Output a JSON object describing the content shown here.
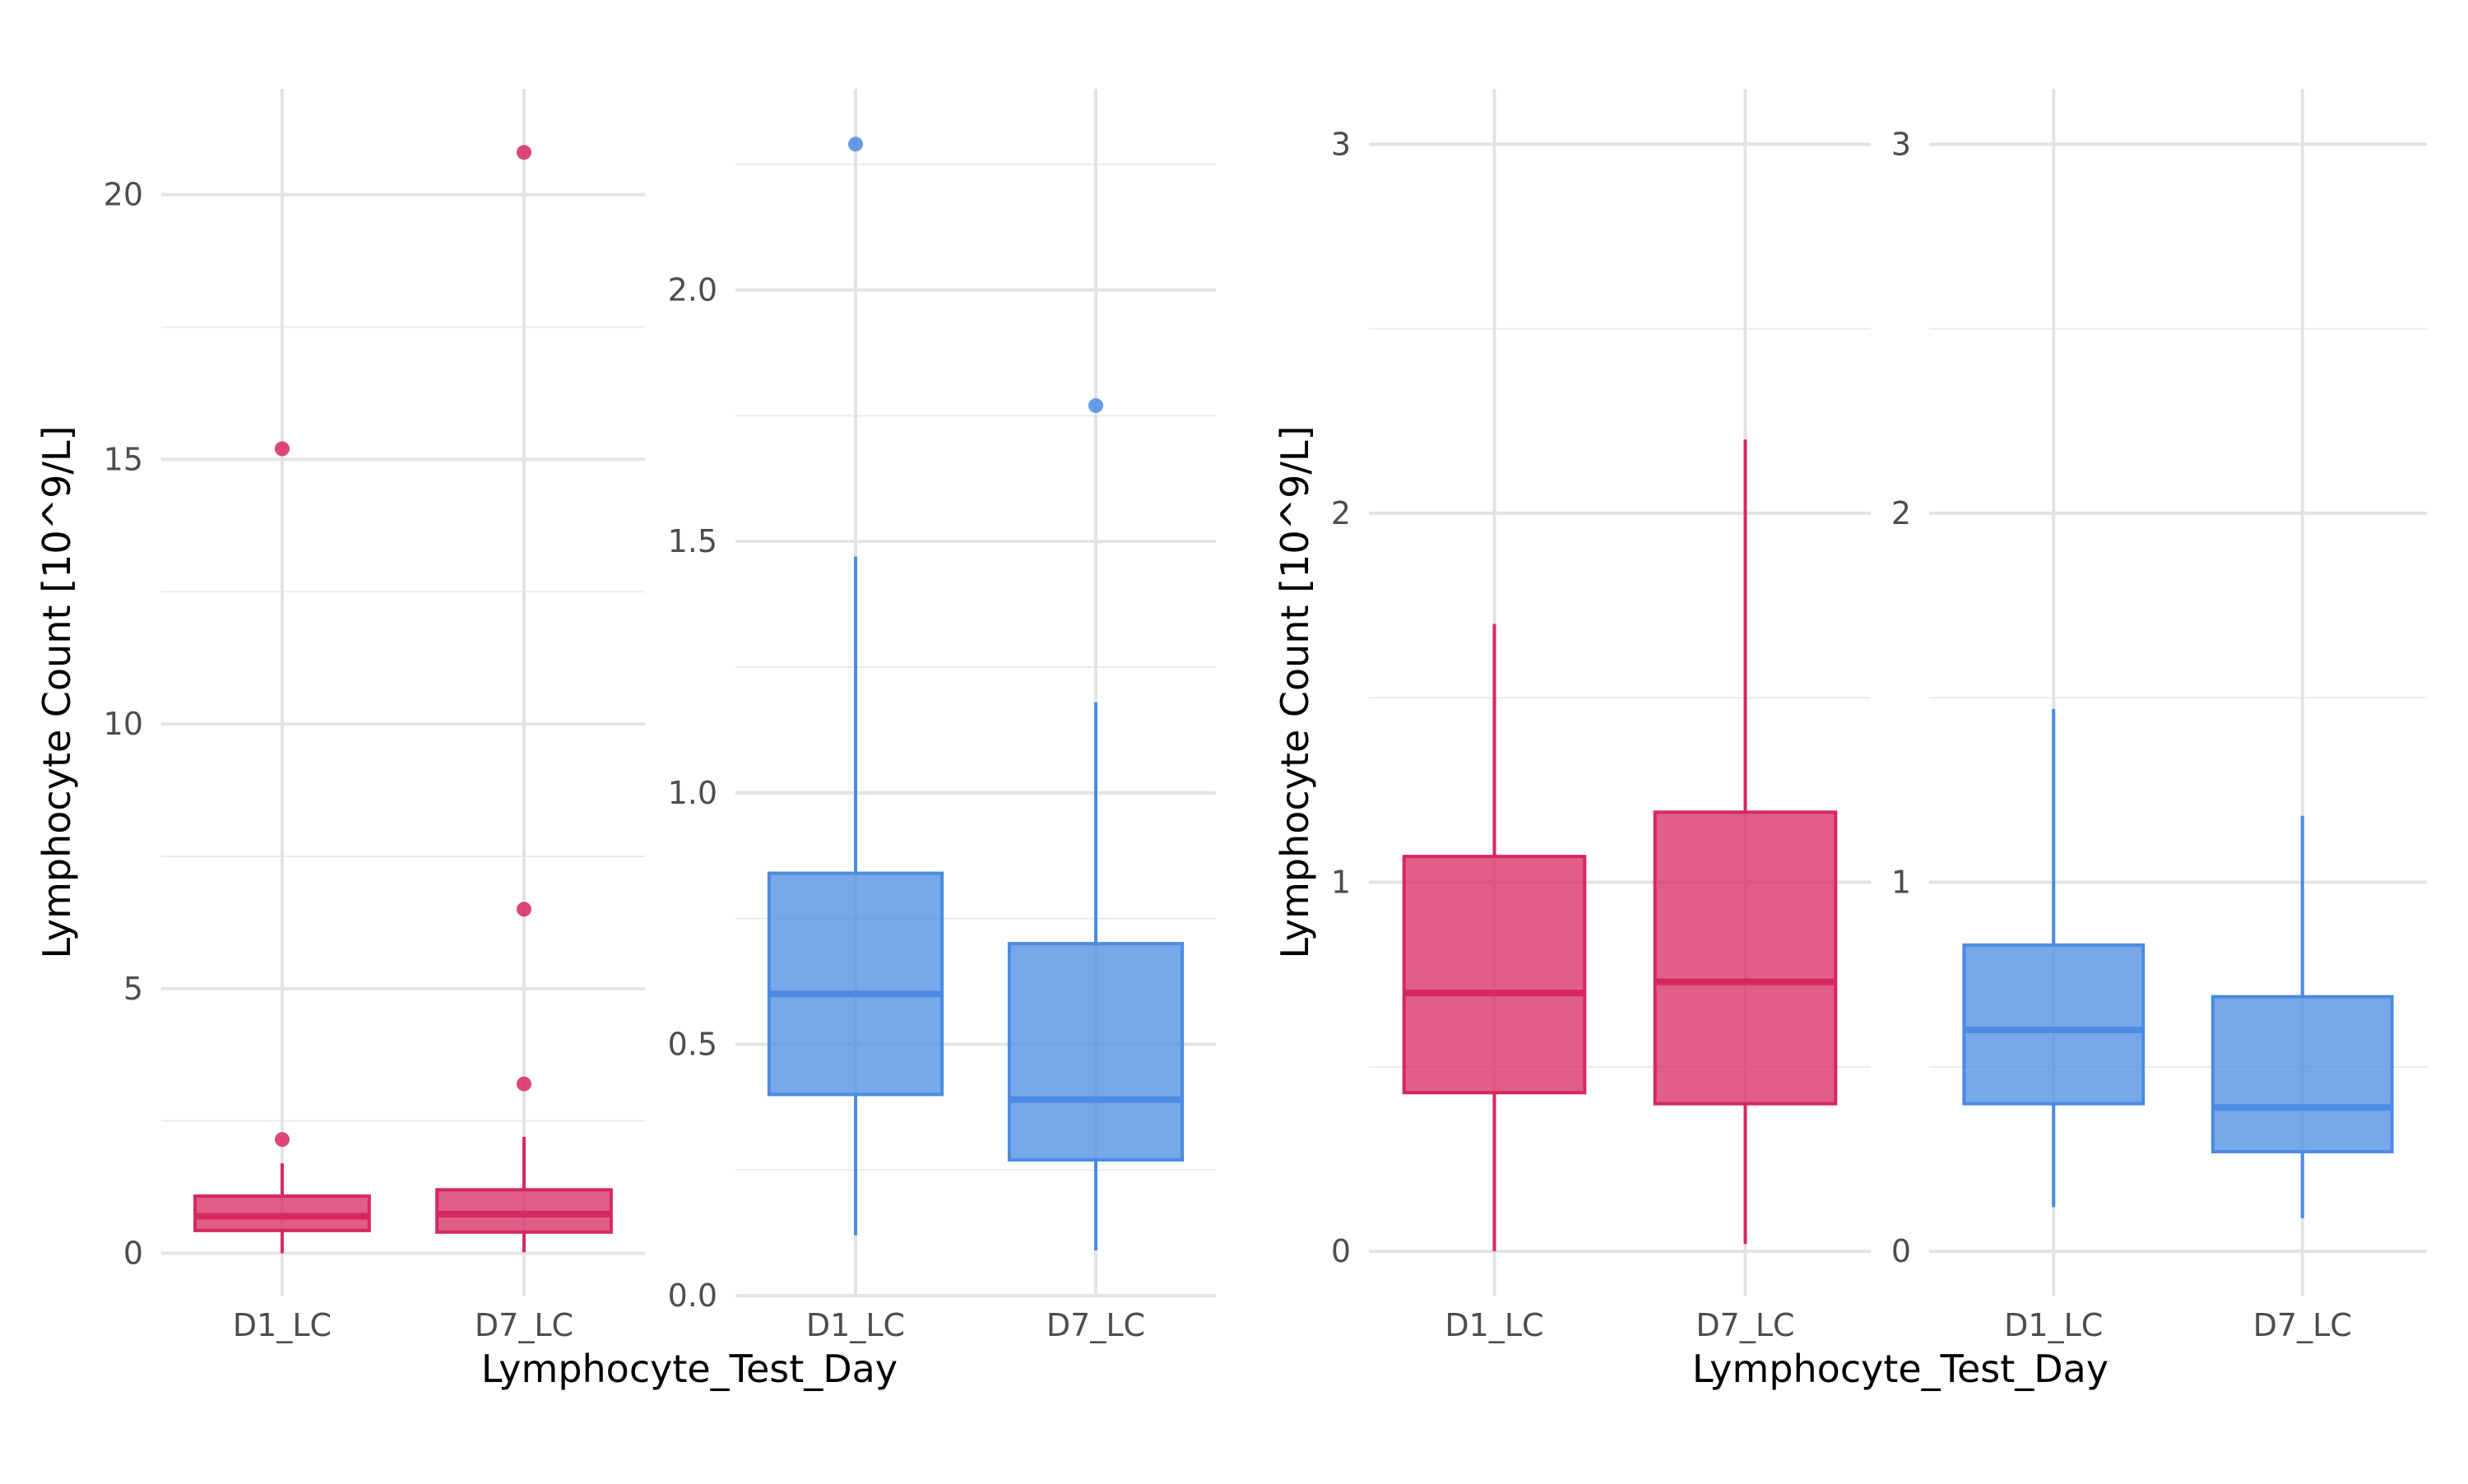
{
  "chart_data": [
    {
      "type": "box",
      "xlabel": "",
      "ylabel": "Lymphocyte Count [10^9/L]",
      "categories": [
        "D1_LC",
        "D7_LC"
      ],
      "ylim": [
        -0.8,
        22.0
      ],
      "yticks": [
        0,
        5,
        10,
        15,
        20
      ],
      "ytick_labels": [
        "0",
        "5",
        "10",
        "15",
        "20"
      ],
      "color": "#d6285f",
      "boxes": [
        {
          "category": "D1_LC",
          "whisker_low": 0.0,
          "q1": 0.43,
          "median": 0.7,
          "q3": 1.08,
          "whisker_high": 1.7,
          "outliers": [
            2.15,
            15.2
          ]
        },
        {
          "category": "D7_LC",
          "whisker_low": 0.02,
          "q1": 0.4,
          "median": 0.74,
          "q3": 1.2,
          "whisker_high": 2.2,
          "outliers": [
            3.2,
            6.5,
            20.8
          ]
        }
      ]
    },
    {
      "type": "box",
      "xlabel": "Lymphocyte_Test_Day",
      "ylabel": "",
      "categories": [
        "D1_LC",
        "D7_LC"
      ],
      "ylim": [
        0.0,
        2.4
      ],
      "yticks": [
        0.0,
        0.5,
        1.0,
        1.5,
        2.0
      ],
      "ytick_labels": [
        "0.0",
        "0.5",
        "1.0",
        "1.5",
        "2.0"
      ],
      "color": "#4b8be3",
      "boxes": [
        {
          "category": "D1_LC",
          "whisker_low": 0.12,
          "q1": 0.4,
          "median": 0.6,
          "q3": 0.84,
          "whisker_high": 1.47,
          "outliers": [
            2.29
          ]
        },
        {
          "category": "D7_LC",
          "whisker_low": 0.09,
          "q1": 0.27,
          "median": 0.39,
          "q3": 0.7,
          "whisker_high": 1.18,
          "outliers": [
            1.77
          ]
        }
      ]
    },
    {
      "type": "box",
      "xlabel": "",
      "ylabel": "Lymphocyte Count [10^9/L]",
      "categories": [
        "D1_LC",
        "D7_LC"
      ],
      "ylim": [
        -0.12,
        3.15
      ],
      "yticks": [
        0,
        1,
        2,
        3
      ],
      "ytick_labels": [
        "0",
        "1",
        "2",
        "3"
      ],
      "color": "#d6285f",
      "boxes": [
        {
          "category": "D1_LC",
          "whisker_low": 0.0,
          "q1": 0.43,
          "median": 0.7,
          "q3": 1.07,
          "whisker_high": 1.7,
          "outliers": []
        },
        {
          "category": "D7_LC",
          "whisker_low": 0.02,
          "q1": 0.4,
          "median": 0.73,
          "q3": 1.19,
          "whisker_high": 2.2,
          "outliers": []
        }
      ]
    },
    {
      "type": "box",
      "xlabel": "Lymphocyte_Test_Day",
      "ylabel": "",
      "categories": [
        "D1_LC",
        "D7_LC"
      ],
      "ylim": [
        -0.12,
        3.15
      ],
      "yticks": [
        0,
        1,
        2,
        3
      ],
      "ytick_labels": [
        "0",
        "1",
        "2",
        "3"
      ],
      "color": "#4b8be3",
      "boxes": [
        {
          "category": "D1_LC",
          "whisker_low": 0.12,
          "q1": 0.4,
          "median": 0.6,
          "q3": 0.83,
          "whisker_high": 1.47,
          "outliers": []
        },
        {
          "category": "D7_LC",
          "whisker_low": 0.09,
          "q1": 0.27,
          "median": 0.39,
          "q3": 0.69,
          "whisker_high": 1.18,
          "outliers": []
        }
      ]
    }
  ]
}
